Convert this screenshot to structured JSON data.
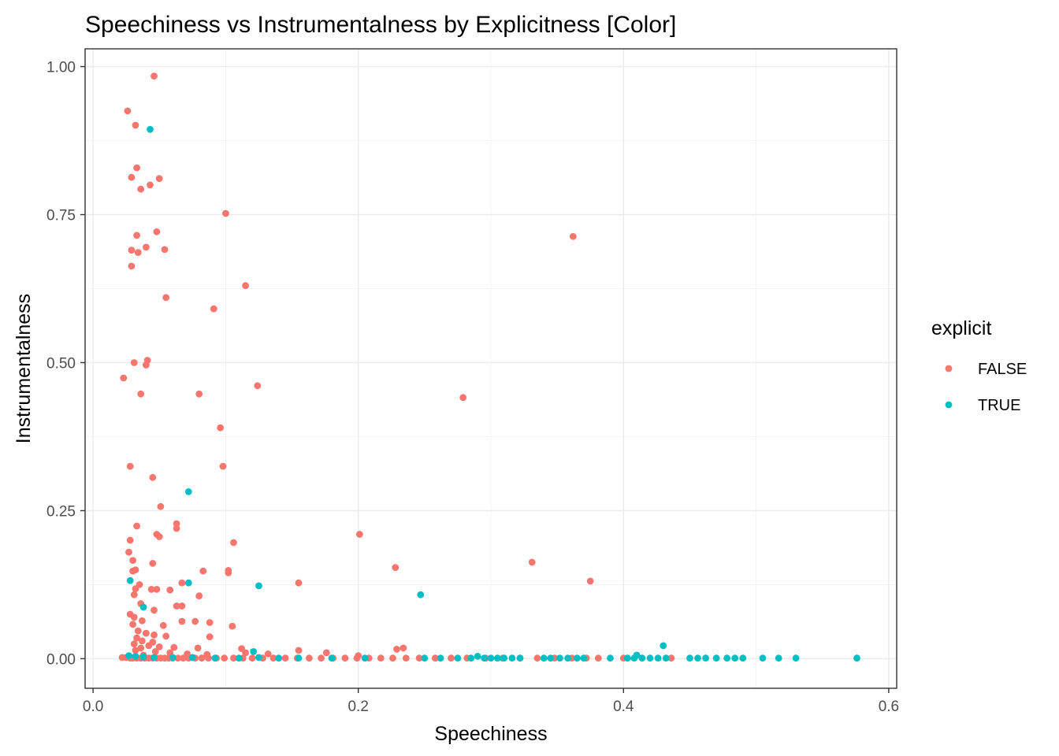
{
  "chart_data": {
    "type": "scatter",
    "title": "Speechiness vs Instrumentalness by Explicitness [Color]",
    "xlabel": "Speechiness",
    "ylabel": "Instrumentalness",
    "xlim": [
      -0.006,
      0.606
    ],
    "ylim": [
      -0.05,
      1.03
    ],
    "x_ticks": [
      0.0,
      0.2,
      0.4,
      0.6
    ],
    "x_tick_labels": [
      "0.0",
      "0.2",
      "0.4",
      "0.6"
    ],
    "y_ticks": [
      0.0,
      0.25,
      0.5,
      0.75,
      1.0
    ],
    "y_tick_labels": [
      "0.00",
      "0.25",
      "0.50",
      "0.75",
      "1.00"
    ],
    "grid": true,
    "legend": {
      "title": "explicit",
      "placement": "right"
    },
    "series": [
      {
        "name": "FALSE",
        "color": "#F8766D",
        "points": [
          [
            0.046,
            0.984
          ],
          [
            0.026,
            0.925
          ],
          [
            0.032,
            0.901
          ],
          [
            0.029,
            0.813
          ],
          [
            0.033,
            0.829
          ],
          [
            0.036,
            0.793
          ],
          [
            0.043,
            0.8
          ],
          [
            0.05,
            0.811
          ],
          [
            0.1,
            0.752
          ],
          [
            0.362,
            0.713
          ],
          [
            0.048,
            0.721
          ],
          [
            0.033,
            0.715
          ],
          [
            0.029,
            0.69
          ],
          [
            0.034,
            0.686
          ],
          [
            0.04,
            0.695
          ],
          [
            0.054,
            0.691
          ],
          [
            0.029,
            0.663
          ],
          [
            0.115,
            0.63
          ],
          [
            0.055,
            0.61
          ],
          [
            0.091,
            0.591
          ],
          [
            0.023,
            0.474
          ],
          [
            0.031,
            0.5
          ],
          [
            0.04,
            0.496
          ],
          [
            0.041,
            0.504
          ],
          [
            0.036,
            0.447
          ],
          [
            0.08,
            0.447
          ],
          [
            0.124,
            0.461
          ],
          [
            0.279,
            0.441
          ],
          [
            0.096,
            0.39
          ],
          [
            0.028,
            0.325
          ],
          [
            0.098,
            0.325
          ],
          [
            0.045,
            0.306
          ],
          [
            0.051,
            0.257
          ],
          [
            0.063,
            0.228
          ],
          [
            0.063,
            0.22
          ],
          [
            0.033,
            0.224
          ],
          [
            0.048,
            0.21
          ],
          [
            0.05,
            0.206
          ],
          [
            0.201,
            0.21
          ],
          [
            0.106,
            0.196
          ],
          [
            0.028,
            0.2
          ],
          [
            0.027,
            0.18
          ],
          [
            0.03,
            0.166
          ],
          [
            0.045,
            0.161
          ],
          [
            0.032,
            0.15
          ],
          [
            0.03,
            0.148
          ],
          [
            0.083,
            0.148
          ],
          [
            0.102,
            0.149
          ],
          [
            0.102,
            0.145
          ],
          [
            0.228,
            0.154
          ],
          [
            0.331,
            0.163
          ],
          [
            0.375,
            0.131
          ],
          [
            0.155,
            0.128
          ],
          [
            0.067,
            0.128
          ],
          [
            0.035,
            0.125
          ],
          [
            0.032,
            0.118
          ],
          [
            0.048,
            0.117
          ],
          [
            0.044,
            0.117
          ],
          [
            0.058,
            0.116
          ],
          [
            0.031,
            0.108
          ],
          [
            0.08,
            0.106
          ],
          [
            0.036,
            0.093
          ],
          [
            0.063,
            0.089
          ],
          [
            0.067,
            0.089
          ],
          [
            0.046,
            0.082
          ],
          [
            0.028,
            0.075
          ],
          [
            0.031,
            0.07
          ],
          [
            0.037,
            0.064
          ],
          [
            0.067,
            0.063
          ],
          [
            0.077,
            0.063
          ],
          [
            0.088,
            0.061
          ],
          [
            0.03,
            0.058
          ],
          [
            0.053,
            0.056
          ],
          [
            0.105,
            0.055
          ],
          [
            0.034,
            0.047
          ],
          [
            0.04,
            0.043
          ],
          [
            0.046,
            0.04
          ],
          [
            0.055,
            0.038
          ],
          [
            0.088,
            0.037
          ],
          [
            0.033,
            0.035
          ],
          [
            0.037,
            0.03
          ],
          [
            0.045,
            0.028
          ],
          [
            0.031,
            0.025
          ],
          [
            0.042,
            0.022
          ],
          [
            0.05,
            0.02
          ],
          [
            0.061,
            0.019
          ],
          [
            0.036,
            0.018
          ],
          [
            0.079,
            0.018
          ],
          [
            0.112,
            0.017
          ],
          [
            0.032,
            0.014
          ],
          [
            0.047,
            0.012
          ],
          [
            0.058,
            0.01
          ],
          [
            0.115,
            0.01
          ],
          [
            0.071,
            0.008
          ],
          [
            0.086,
            0.007
          ],
          [
            0.038,
            0.006
          ],
          [
            0.155,
            0.014
          ],
          [
            0.176,
            0.01
          ],
          [
            0.229,
            0.016
          ],
          [
            0.234,
            0.018
          ],
          [
            0.132,
            0.008
          ],
          [
            0.2,
            0.005
          ],
          [
            0.022,
            0.002
          ],
          [
            0.025,
            0.002
          ],
          [
            0.028,
            0.001
          ],
          [
            0.03,
            0.001
          ],
          [
            0.033,
            0.001
          ],
          [
            0.036,
            0.001
          ],
          [
            0.039,
            0.001
          ],
          [
            0.042,
            0.001
          ],
          [
            0.045,
            0.001
          ],
          [
            0.048,
            0.001
          ],
          [
            0.051,
            0.001
          ],
          [
            0.054,
            0.001
          ],
          [
            0.057,
            0.001
          ],
          [
            0.06,
            0.001
          ],
          [
            0.064,
            0.001
          ],
          [
            0.068,
            0.001
          ],
          [
            0.072,
            0.001
          ],
          [
            0.077,
            0.001
          ],
          [
            0.082,
            0.001
          ],
          [
            0.087,
            0.001
          ],
          [
            0.093,
            0.001
          ],
          [
            0.099,
            0.001
          ],
          [
            0.106,
            0.001
          ],
          [
            0.113,
            0.001
          ],
          [
            0.12,
            0.001
          ],
          [
            0.128,
            0.001
          ],
          [
            0.136,
            0.001
          ],
          [
            0.145,
            0.001
          ],
          [
            0.154,
            0.001
          ],
          [
            0.163,
            0.001
          ],
          [
            0.172,
            0.001
          ],
          [
            0.181,
            0.001
          ],
          [
            0.19,
            0.001
          ],
          [
            0.199,
            0.001
          ],
          [
            0.208,
            0.001
          ],
          [
            0.217,
            0.001
          ],
          [
            0.226,
            0.001
          ],
          [
            0.236,
            0.001
          ],
          [
            0.246,
            0.001
          ],
          [
            0.258,
            0.001
          ],
          [
            0.27,
            0.001
          ],
          [
            0.282,
            0.001
          ],
          [
            0.296,
            0.001
          ],
          [
            0.309,
            0.001
          ],
          [
            0.322,
            0.001
          ],
          [
            0.335,
            0.001
          ],
          [
            0.348,
            0.001
          ],
          [
            0.361,
            0.001
          ],
          [
            0.372,
            0.001
          ],
          [
            0.381,
            0.001
          ],
          [
            0.4,
            0.001
          ],
          [
            0.436,
            0.001
          ]
        ]
      },
      {
        "name": "TRUE",
        "color": "#00BFC4",
        "points": [
          [
            0.043,
            0.894
          ],
          [
            0.072,
            0.282
          ],
          [
            0.028,
            0.132
          ],
          [
            0.072,
            0.128
          ],
          [
            0.125,
            0.123
          ],
          [
            0.247,
            0.108
          ],
          [
            0.038,
            0.087
          ],
          [
            0.43,
            0.022
          ],
          [
            0.121,
            0.012
          ],
          [
            0.41,
            0.006
          ],
          [
            0.027,
            0.005
          ],
          [
            0.032,
            0.004
          ],
          [
            0.038,
            0.003
          ],
          [
            0.046,
            0.002
          ],
          [
            0.06,
            0.002
          ],
          [
            0.075,
            0.002
          ],
          [
            0.092,
            0.001
          ],
          [
            0.11,
            0.001
          ],
          [
            0.125,
            0.002
          ],
          [
            0.14,
            0.001
          ],
          [
            0.155,
            0.001
          ],
          [
            0.18,
            0.001
          ],
          [
            0.205,
            0.001
          ],
          [
            0.25,
            0.001
          ],
          [
            0.262,
            0.001
          ],
          [
            0.275,
            0.001
          ],
          [
            0.285,
            0.001
          ],
          [
            0.29,
            0.004
          ],
          [
            0.295,
            0.001
          ],
          [
            0.3,
            0.001
          ],
          [
            0.305,
            0.001
          ],
          [
            0.31,
            0.001
          ],
          [
            0.316,
            0.001
          ],
          [
            0.322,
            0.001
          ],
          [
            0.34,
            0.001
          ],
          [
            0.345,
            0.001
          ],
          [
            0.352,
            0.001
          ],
          [
            0.358,
            0.001
          ],
          [
            0.365,
            0.001
          ],
          [
            0.37,
            0.001
          ],
          [
            0.39,
            0.001
          ],
          [
            0.403,
            0.001
          ],
          [
            0.408,
            0.001
          ],
          [
            0.414,
            0.001
          ],
          [
            0.42,
            0.001
          ],
          [
            0.426,
            0.001
          ],
          [
            0.432,
            0.001
          ],
          [
            0.45,
            0.001
          ],
          [
            0.456,
            0.001
          ],
          [
            0.462,
            0.001
          ],
          [
            0.47,
            0.001
          ],
          [
            0.478,
            0.001
          ],
          [
            0.484,
            0.001
          ],
          [
            0.49,
            0.001
          ],
          [
            0.505,
            0.001
          ],
          [
            0.517,
            0.001
          ],
          [
            0.53,
            0.001
          ],
          [
            0.576,
            0.001
          ]
        ]
      }
    ]
  }
}
